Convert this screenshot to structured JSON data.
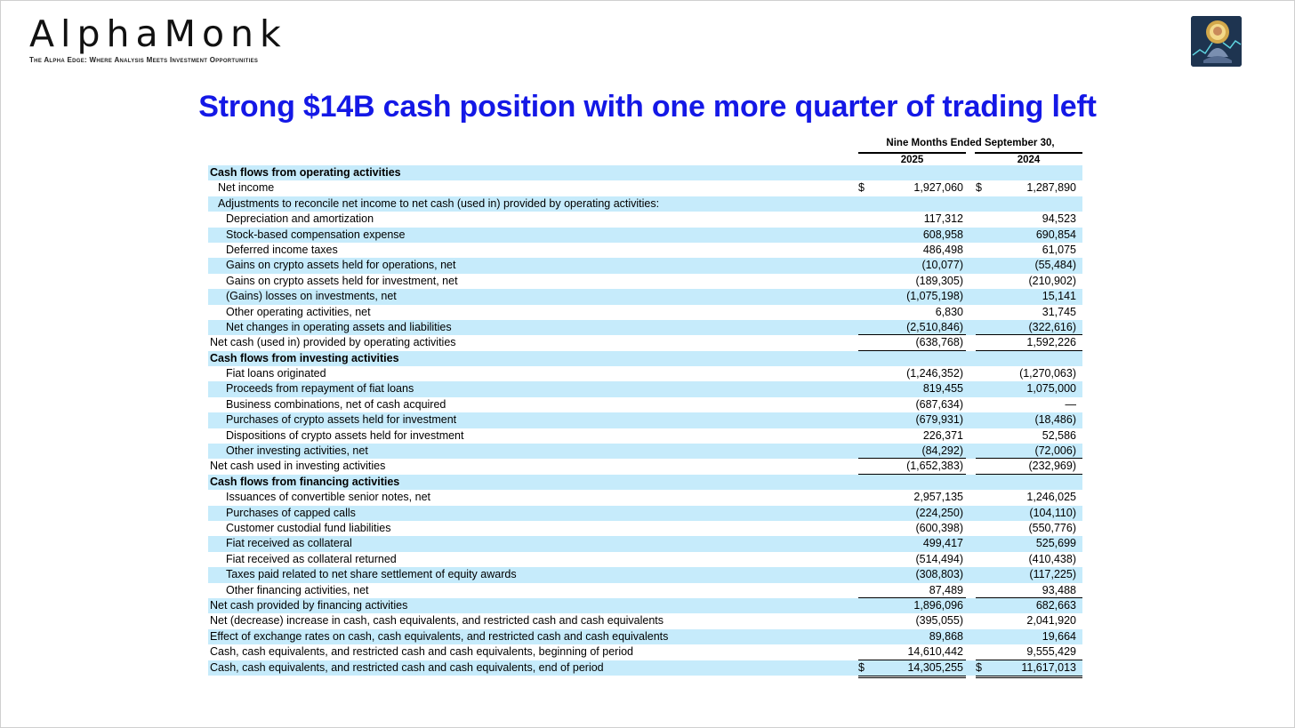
{
  "brand": {
    "name": "AlphaMonk",
    "tagline": "The Alpha Edge: Where Analysis Meets Investment Opportunities",
    "logo_icon": "monk-meditating-logo-icon"
  },
  "headline": "Strong $14B cash position with one more quarter of trading left",
  "colors": {
    "headline": "#1418e6",
    "row_highlight": "#c6ebfb"
  },
  "table": {
    "period": "Nine Months Ended September 30,",
    "years": [
      "2025",
      "2024"
    ],
    "rows": [
      {
        "label": "Cash flows from operating activities",
        "indent": 0,
        "bold": true,
        "band": true,
        "v1": "",
        "v2": ""
      },
      {
        "label": "Net income",
        "indent": 1,
        "band": false,
        "dollar": true,
        "v1": "1,927,060",
        "v2": "1,287,890"
      },
      {
        "label": "Adjustments to reconcile net income to net cash (used in) provided by operating activities:",
        "indent": 1,
        "band": true,
        "v1": "",
        "v2": ""
      },
      {
        "label": "Depreciation and amortization",
        "indent": 2,
        "band": false,
        "v1": "117,312",
        "v2": "94,523"
      },
      {
        "label": "Stock-based compensation expense",
        "indent": 2,
        "band": true,
        "v1": "608,958",
        "v2": "690,854"
      },
      {
        "label": "Deferred income taxes",
        "indent": 2,
        "band": false,
        "v1": "486,498",
        "v2": "61,075"
      },
      {
        "label": "Gains on crypto assets held for operations, net",
        "indent": 2,
        "band": true,
        "v1": "(10,077)",
        "v2": "(55,484)"
      },
      {
        "label": "Gains on crypto assets held for investment, net",
        "indent": 2,
        "band": false,
        "v1": "(189,305)",
        "v2": "(210,902)"
      },
      {
        "label": "(Gains) losses on investments, net",
        "indent": 2,
        "band": true,
        "v1": "(1,075,198)",
        "v2": "15,141"
      },
      {
        "label": "Other operating activities, net",
        "indent": 2,
        "band": false,
        "v1": "6,830",
        "v2": "31,745"
      },
      {
        "label": "Net changes in operating assets and liabilities",
        "indent": 2,
        "band": true,
        "v1": "(2,510,846)",
        "v2": "(322,616)",
        "rule_below": true
      },
      {
        "label": "Net cash (used in) provided by operating activities",
        "indent": 0,
        "band": false,
        "v1": "(638,768)",
        "v2": "1,592,226",
        "rule_below": true
      },
      {
        "label": "Cash flows from investing activities",
        "indent": 0,
        "bold": true,
        "band": true,
        "v1": "",
        "v2": ""
      },
      {
        "label": "Fiat loans originated",
        "indent": 2,
        "band": false,
        "v1": "(1,246,352)",
        "v2": "(1,270,063)"
      },
      {
        "label": "Proceeds from repayment of fiat loans",
        "indent": 2,
        "band": true,
        "v1": "819,455",
        "v2": "1,075,000"
      },
      {
        "label": "Business combinations, net of cash acquired",
        "indent": 2,
        "band": false,
        "v1": "(687,634)",
        "v2": "—"
      },
      {
        "label": "Purchases of crypto assets held for investment",
        "indent": 2,
        "band": true,
        "v1": "(679,931)",
        "v2": "(18,486)"
      },
      {
        "label": "Dispositions of crypto assets held for investment",
        "indent": 2,
        "band": false,
        "v1": "226,371",
        "v2": "52,586"
      },
      {
        "label": "Other investing activities, net",
        "indent": 2,
        "band": true,
        "v1": "(84,292)",
        "v2": "(72,006)",
        "rule_below": true
      },
      {
        "label": "Net cash used in investing activities",
        "indent": 0,
        "band": false,
        "v1": "(1,652,383)",
        "v2": "(232,969)",
        "rule_below": true
      },
      {
        "label": "Cash flows from financing activities",
        "indent": 0,
        "bold": true,
        "band": true,
        "v1": "",
        "v2": ""
      },
      {
        "label": "Issuances of convertible senior notes, net",
        "indent": 2,
        "band": false,
        "v1": "2,957,135",
        "v2": "1,246,025"
      },
      {
        "label": "Purchases of capped calls",
        "indent": 2,
        "band": true,
        "v1": "(224,250)",
        "v2": "(104,110)"
      },
      {
        "label": "Customer custodial fund liabilities",
        "indent": 2,
        "band": false,
        "v1": "(600,398)",
        "v2": "(550,776)"
      },
      {
        "label": "Fiat received as collateral",
        "indent": 2,
        "band": true,
        "v1": "499,417",
        "v2": "525,699"
      },
      {
        "label": "Fiat received as collateral returned",
        "indent": 2,
        "band": false,
        "v1": "(514,494)",
        "v2": "(410,438)"
      },
      {
        "label": "Taxes paid related to net share settlement of equity awards",
        "indent": 2,
        "band": true,
        "v1": "(308,803)",
        "v2": "(117,225)"
      },
      {
        "label": "Other financing activities, net",
        "indent": 2,
        "band": false,
        "v1": "87,489",
        "v2": "93,488",
        "rule_below": true
      },
      {
        "label": "Net cash provided by financing activities",
        "indent": 0,
        "band": true,
        "v1": "1,896,096",
        "v2": "682,663"
      },
      {
        "label": "Net (decrease) increase in cash, cash equivalents, and restricted cash and cash equivalents",
        "indent": 0,
        "band": false,
        "v1": "(395,055)",
        "v2": "2,041,920"
      },
      {
        "label": "Effect of exchange rates on cash, cash equivalents, and restricted cash and cash equivalents",
        "indent": 0,
        "band": true,
        "v1": "89,868",
        "v2": "19,664"
      },
      {
        "label": "Cash, cash equivalents, and restricted cash and cash equivalents, beginning of period",
        "indent": 0,
        "band": false,
        "v1": "14,610,442",
        "v2": "9,555,429",
        "rule_below": true
      },
      {
        "label": "Cash, cash equivalents, and restricted cash and cash equivalents, end of period",
        "indent": 0,
        "band": true,
        "dollar": true,
        "v1": "14,305,255",
        "v2": "11,617,013",
        "double_below": true
      }
    ]
  }
}
